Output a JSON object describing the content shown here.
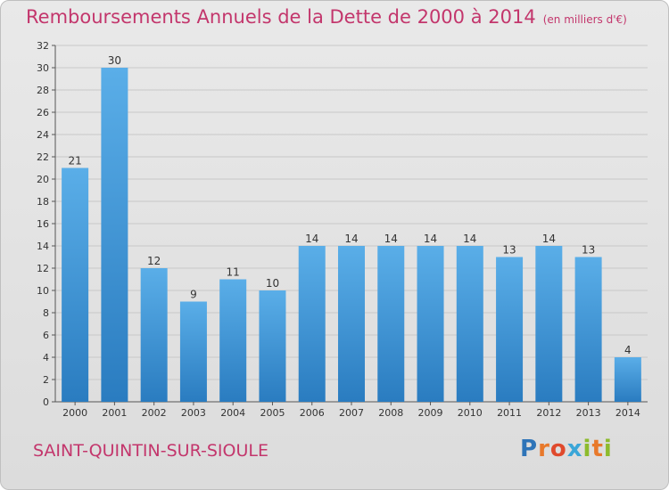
{
  "title": "Remboursements Annuels de la Dette de 2000 à 2014",
  "unit": "(en milliers d'€)",
  "city": "SAINT-QUINTIN-SUR-SIOULE",
  "logo": "Proxiti",
  "colors": {
    "title": "#c3366c",
    "bar_light": "#5aaee8",
    "bar_dark": "#2a7cc0"
  },
  "chart_data": {
    "type": "bar",
    "title": "Remboursements Annuels de la Dette de 2000 à 2014",
    "subtitle": "(en milliers d'€)",
    "xlabel": "",
    "ylabel": "",
    "categories": [
      "2000",
      "2001",
      "2002",
      "2003",
      "2004",
      "2005",
      "2006",
      "2007",
      "2008",
      "2009",
      "2010",
      "2011",
      "2012",
      "2013",
      "2014"
    ],
    "values": [
      21,
      30,
      12,
      9,
      11,
      10,
      14,
      14,
      14,
      14,
      14,
      13,
      14,
      13,
      4
    ],
    "ylim": [
      0,
      32
    ],
    "yticks": [
      0,
      2,
      4,
      6,
      8,
      10,
      12,
      14,
      16,
      18,
      20,
      22,
      24,
      26,
      28,
      30,
      32
    ],
    "grid": true,
    "data_labels": true
  }
}
